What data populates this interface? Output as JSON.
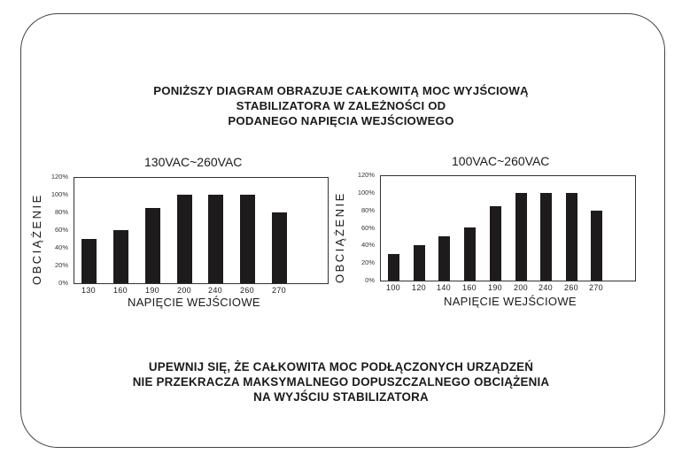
{
  "header": {
    "lines": [
      "PONIŻSZY DIAGRAM OBRAZUJE CAŁKOWITĄ MOC WYJŚCIOWĄ",
      "STABILIZATORA W ZALEŻNOŚCI OD",
      "PODANEGO NAPIĘCIA WEJŚCIOWEGO"
    ]
  },
  "footer": {
    "lines": [
      "UPEWNIJ SIĘ, ŻE CAŁKOWITA MOC PODŁĄCZONYCH URZĄDZEŃ",
      "NIE PRZEKRACZA MAKSYMALNEGO DOPUSZCZALNEGO OBCIĄŻENIA",
      "NA WYJŚCIU STABILIZATORA"
    ]
  },
  "colors": {
    "bar": "#1e1b1c",
    "frame": "#444444",
    "text": "#1a1a1a"
  },
  "chart_data": [
    {
      "type": "bar",
      "title": "130VAC~260VAC",
      "xlabel": "NAPIĘCIE WEJŚCIOWE",
      "ylabel": "OBCIĄŻENIE",
      "categories": [
        "130",
        "160",
        "190",
        "200",
        "240",
        "260",
        "270"
      ],
      "values": [
        50,
        60,
        85,
        100,
        100,
        100,
        80
      ],
      "unit": "%",
      "ylim": [
        0,
        120
      ],
      "yticks": [
        "0%",
        "20%",
        "40%",
        "60%",
        "80%",
        "100%",
        "120%"
      ],
      "grid": false,
      "legend": null
    },
    {
      "type": "bar",
      "title": "100VAC~260VAC",
      "xlabel": "NAPIĘCIE WEJŚCIOWE",
      "ylabel": "OBCIĄŻENIE",
      "categories": [
        "100",
        "120",
        "140",
        "160",
        "190",
        "200",
        "240",
        "260",
        "270"
      ],
      "values": [
        30,
        40,
        50,
        60,
        85,
        100,
        100,
        100,
        80
      ],
      "unit": "%",
      "ylim": [
        0,
        120
      ],
      "yticks": [
        "0%",
        "20%",
        "40%",
        "60%",
        "80%",
        "100%",
        "120%"
      ],
      "grid": false,
      "legend": null
    }
  ]
}
